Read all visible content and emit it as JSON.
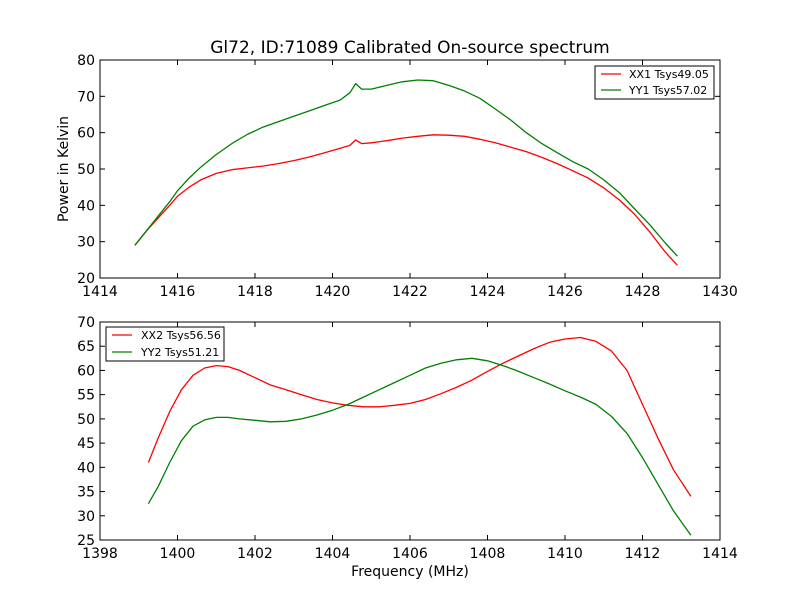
{
  "chart_data": [
    {
      "type": "line",
      "title": "Gl72, ID:71089 Calibrated On-source spectrum",
      "xlabel": "",
      "ylabel": "Power in Kelvin",
      "xlim": [
        1414,
        1430
      ],
      "ylim": [
        20,
        80
      ],
      "xticks": [
        1414,
        1416,
        1418,
        1420,
        1422,
        1424,
        1426,
        1428,
        1430
      ],
      "yticks": [
        20,
        30,
        40,
        50,
        60,
        70,
        80
      ],
      "grid": false,
      "legend_position": "top-right",
      "series": [
        {
          "name": "XX1 Tsys49.05",
          "color": "#ff0000",
          "x": [
            1414.9,
            1415.2,
            1415.5,
            1415.8,
            1416.0,
            1416.3,
            1416.6,
            1417.0,
            1417.4,
            1417.8,
            1418.2,
            1418.6,
            1419.0,
            1419.4,
            1419.8,
            1420.2,
            1420.45,
            1420.6,
            1420.75,
            1421.0,
            1421.4,
            1421.8,
            1422.2,
            1422.6,
            1423.0,
            1423.4,
            1423.8,
            1424.2,
            1424.6,
            1425.0,
            1425.4,
            1425.8,
            1426.2,
            1426.6,
            1427.0,
            1427.4,
            1427.8,
            1428.2,
            1428.6,
            1428.9
          ],
          "y": [
            29.0,
            33.0,
            36.5,
            40.0,
            42.5,
            45.0,
            47.0,
            48.8,
            49.8,
            50.3,
            50.8,
            51.5,
            52.3,
            53.3,
            54.5,
            55.7,
            56.5,
            58.0,
            57.0,
            57.2,
            57.8,
            58.5,
            59.0,
            59.4,
            59.3,
            59.0,
            58.2,
            57.2,
            56.0,
            54.8,
            53.2,
            51.5,
            49.5,
            47.5,
            44.8,
            41.5,
            37.5,
            32.5,
            27.0,
            23.5
          ]
        },
        {
          "name": "YY1 Tsys57.02",
          "color": "#008000",
          "x": [
            1414.9,
            1415.2,
            1415.5,
            1415.8,
            1416.0,
            1416.3,
            1416.6,
            1417.0,
            1417.4,
            1417.8,
            1418.2,
            1418.6,
            1419.0,
            1419.4,
            1419.8,
            1420.2,
            1420.45,
            1420.6,
            1420.75,
            1421.0,
            1421.4,
            1421.8,
            1422.2,
            1422.6,
            1423.0,
            1423.4,
            1423.8,
            1424.2,
            1424.6,
            1425.0,
            1425.4,
            1425.8,
            1426.2,
            1426.6,
            1427.0,
            1427.4,
            1427.8,
            1428.2,
            1428.6,
            1428.9
          ],
          "y": [
            29.0,
            33.0,
            37.0,
            41.0,
            44.0,
            47.5,
            50.5,
            54.0,
            57.0,
            59.5,
            61.5,
            63.0,
            64.5,
            66.0,
            67.5,
            69.0,
            71.0,
            73.5,
            72.0,
            72.0,
            73.0,
            74.0,
            74.5,
            74.3,
            73.0,
            71.5,
            69.5,
            66.5,
            63.5,
            60.0,
            57.0,
            54.5,
            52.0,
            50.0,
            47.0,
            43.5,
            39.0,
            34.5,
            29.5,
            26.0
          ]
        }
      ]
    },
    {
      "type": "line",
      "title": "",
      "xlabel": "Frequency (MHz)",
      "ylabel": "",
      "xlim": [
        1398,
        1414
      ],
      "ylim": [
        25,
        70
      ],
      "xticks": [
        1398,
        1400,
        1402,
        1404,
        1406,
        1408,
        1410,
        1412,
        1414
      ],
      "yticks": [
        25,
        30,
        35,
        40,
        45,
        50,
        55,
        60,
        65,
        70
      ],
      "grid": false,
      "legend_position": "top-left",
      "series": [
        {
          "name": "XX2 Tsys56.56",
          "color": "#ff0000",
          "x": [
            1399.25,
            1399.5,
            1399.8,
            1400.1,
            1400.4,
            1400.7,
            1401.0,
            1401.3,
            1401.6,
            1402.0,
            1402.4,
            1402.8,
            1403.2,
            1403.6,
            1404.0,
            1404.4,
            1404.8,
            1405.2,
            1405.6,
            1406.0,
            1406.4,
            1406.8,
            1407.2,
            1407.6,
            1408.0,
            1408.4,
            1408.8,
            1409.2,
            1409.6,
            1410.0,
            1410.4,
            1410.8,
            1411.2,
            1411.6,
            1412.0,
            1412.4,
            1412.8,
            1413.25
          ],
          "y": [
            41.0,
            46.0,
            51.5,
            56.0,
            59.0,
            60.5,
            61.0,
            60.8,
            60.0,
            58.5,
            57.0,
            56.0,
            55.0,
            54.0,
            53.3,
            52.8,
            52.5,
            52.5,
            52.8,
            53.2,
            54.0,
            55.2,
            56.5,
            58.0,
            59.8,
            61.5,
            63.0,
            64.5,
            65.8,
            66.5,
            66.8,
            66.0,
            64.0,
            60.0,
            53.0,
            46.0,
            39.5,
            34.0
          ]
        },
        {
          "name": "YY2 Tsys51.21",
          "color": "#008000",
          "x": [
            1399.25,
            1399.5,
            1399.8,
            1400.1,
            1400.4,
            1400.7,
            1401.0,
            1401.3,
            1401.6,
            1402.0,
            1402.4,
            1402.8,
            1403.2,
            1403.6,
            1404.0,
            1404.4,
            1404.8,
            1405.2,
            1405.6,
            1406.0,
            1406.4,
            1406.8,
            1407.2,
            1407.6,
            1408.0,
            1408.4,
            1408.8,
            1409.2,
            1409.6,
            1410.0,
            1410.4,
            1410.8,
            1411.2,
            1411.6,
            1412.0,
            1412.4,
            1412.8,
            1413.25
          ],
          "y": [
            32.5,
            36.0,
            41.0,
            45.5,
            48.5,
            49.8,
            50.3,
            50.3,
            50.0,
            49.7,
            49.4,
            49.5,
            50.0,
            50.8,
            51.8,
            53.0,
            54.5,
            56.0,
            57.5,
            59.0,
            60.5,
            61.5,
            62.2,
            62.5,
            62.0,
            61.0,
            59.8,
            58.5,
            57.2,
            55.8,
            54.5,
            53.0,
            50.5,
            47.0,
            42.0,
            36.5,
            31.0,
            26.0
          ]
        }
      ]
    }
  ]
}
